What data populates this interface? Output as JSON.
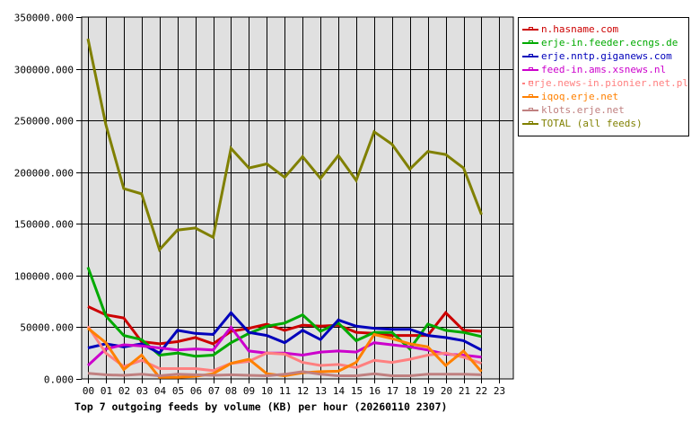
{
  "chart_data": {
    "type": "line",
    "title": "Top 7 outgoing feeds by volume (KB) per hour (20260110 2307)",
    "xlabel": "",
    "ylabel": "",
    "ylim": [
      0,
      350000
    ],
    "yticks": [
      "0.000",
      "50000.000",
      "100000.000",
      "150000.000",
      "200000.000",
      "250000.000",
      "300000.000",
      "350000.000"
    ],
    "x": [
      "00",
      "01",
      "02",
      "03",
      "04",
      "05",
      "06",
      "07",
      "08",
      "09",
      "10",
      "11",
      "12",
      "13",
      "14",
      "15",
      "16",
      "17",
      "18",
      "19",
      "20",
      "21",
      "22",
      "23"
    ],
    "grid": true,
    "legend_position": "right",
    "series": [
      {
        "name": "n.hasname.com",
        "color": "#cc0000",
        "values": [
          70000,
          62000,
          59000,
          36000,
          34000,
          36000,
          40000,
          34000,
          46000,
          49000,
          53000,
          47000,
          52000,
          51000,
          52000,
          45000,
          44000,
          42000,
          42000,
          42000,
          64000,
          47000,
          46000
        ]
      },
      {
        "name": "erje-in.feeder.ecngs.de",
        "color": "#00aa00",
        "values": [
          108000,
          61000,
          42000,
          38000,
          23000,
          25000,
          22000,
          23000,
          35000,
          44000,
          51000,
          54000,
          62000,
          46000,
          54000,
          37000,
          45000,
          45000,
          29000,
          53000,
          47000,
          45000,
          41000
        ]
      },
      {
        "name": "erje.nntp.giganews.com",
        "color": "#0000bb",
        "values": [
          30000,
          34000,
          31000,
          34000,
          25000,
          47000,
          44000,
          43000,
          64000,
          45000,
          42000,
          35000,
          47000,
          38000,
          57000,
          51000,
          49000,
          48000,
          48000,
          42000,
          40000,
          37000,
          28000
        ]
      },
      {
        "name": "feed-in.ams.xsnews.nl",
        "color": "#cc00cc",
        "values": [
          13000,
          29000,
          33000,
          32000,
          30000,
          28000,
          29000,
          28000,
          50000,
          27000,
          25000,
          25000,
          23000,
          26000,
          27000,
          26000,
          35000,
          33000,
          31000,
          28000,
          24000,
          23000,
          21000
        ]
      },
      {
        "name": "erje.news-in.pionier.net.pl",
        "color": "#ff8080",
        "values": [
          51000,
          25000,
          12000,
          18000,
          10000,
          10000,
          10000,
          8000,
          15000,
          17000,
          25000,
          24000,
          16000,
          13000,
          14000,
          11000,
          18000,
          16000,
          19000,
          23000,
          25000,
          21000,
          15000
        ]
      },
      {
        "name": "iqoq.erje.net",
        "color": "#ff8000",
        "values": [
          49000,
          35000,
          9000,
          23000,
          1500,
          1500,
          2500,
          5000,
          15000,
          19000,
          5000,
          3000,
          6000,
          7000,
          7500,
          16000,
          43000,
          39000,
          34000,
          31000,
          13000,
          27000,
          7000
        ]
      },
      {
        "name": "klots.erje.net",
        "color": "#c08080",
        "values": [
          5500,
          4000,
          3500,
          4500,
          3000,
          4500,
          4000,
          3500,
          4000,
          3500,
          3000,
          4500,
          7000,
          4500,
          3000,
          3000,
          5000,
          3000,
          3000,
          4500,
          4500,
          4500,
          4000
        ]
      },
      {
        "name": "TOTAL (all feeds)",
        "color": "#808000",
        "values": [
          329000,
          246000,
          184000,
          179000,
          125000,
          144000,
          146000,
          137000,
          223000,
          204000,
          208000,
          195000,
          215000,
          194000,
          216000,
          192000,
          239000,
          227000,
          203000,
          220000,
          217000,
          204000,
          159000
        ]
      }
    ]
  },
  "legend": {
    "items": [
      {
        "label": "n.hasname.com",
        "color": "#cc0000"
      },
      {
        "label": "erje-in.feeder.ecngs.de",
        "color": "#00aa00"
      },
      {
        "label": "erje.nntp.giganews.com",
        "color": "#0000bb"
      },
      {
        "label": "feed-in.ams.xsnews.nl",
        "color": "#cc00cc"
      },
      {
        "label": "erje.news-in.pionier.net.pl",
        "color": "#ff8080"
      },
      {
        "label": "iqoq.erje.net",
        "color": "#ff8000"
      },
      {
        "label": "klots.erje.net",
        "color": "#c08080"
      },
      {
        "label": "TOTAL (all feeds)",
        "color": "#808000"
      }
    ]
  },
  "caption": "Top 7 outgoing feeds by volume (KB) per hour (20260110 2307)"
}
